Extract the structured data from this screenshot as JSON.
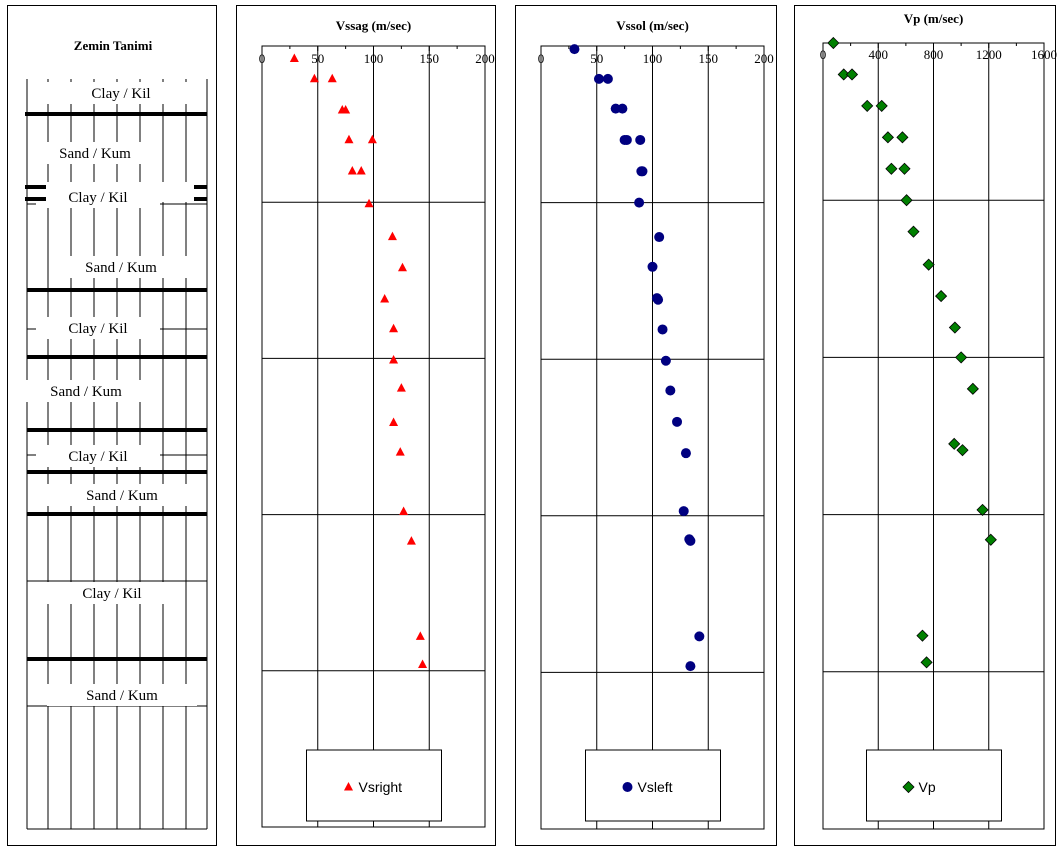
{
  "soil_column": {
    "title": "Zemin Tanimi",
    "layers": [
      {
        "label": "Clay / Kil"
      },
      {
        "label": "Sand / Kum"
      },
      {
        "label": "Clay / Kil"
      },
      {
        "label": "Sand / Kum"
      },
      {
        "label": "Clay / Kil"
      },
      {
        "label": "Sand / Kum"
      },
      {
        "label": "Clay / Kil"
      },
      {
        "label": "Sand / Kum"
      },
      {
        "label": "Clay / Kil"
      },
      {
        "label": "Sand / Kum"
      }
    ]
  },
  "chart_data": [
    {
      "type": "scatter",
      "title": "Vssag (m/sec)",
      "xlim": [
        0,
        200
      ],
      "xticks": [
        "0",
        "50",
        "100",
        "150",
        "200"
      ],
      "grid": true,
      "legend_position": "bottom",
      "series": [
        {
          "name": "Vsright",
          "marker": "triangle",
          "color": "#ff0000",
          "points": [
            {
              "x": 29,
              "depth": 0.8
            },
            {
              "x": 47,
              "depth": 2.1
            },
            {
              "x": 63,
              "depth": 2.1
            },
            {
              "x": 72,
              "depth": 4.1
            },
            {
              "x": 75,
              "depth": 4.1
            },
            {
              "x": 78,
              "depth": 6.0
            },
            {
              "x": 99,
              "depth": 6.0
            },
            {
              "x": 81,
              "depth": 8.0
            },
            {
              "x": 89,
              "depth": 8.0
            },
            {
              "x": 96,
              "depth": 10.1
            },
            {
              "x": 117,
              "depth": 12.2
            },
            {
              "x": 126,
              "depth": 14.2
            },
            {
              "x": 110,
              "depth": 16.2
            },
            {
              "x": 118,
              "depth": 18.1
            },
            {
              "x": 118,
              "depth": 20.1
            },
            {
              "x": 125,
              "depth": 21.9
            },
            {
              "x": 118,
              "depth": 24.1
            },
            {
              "x": 124,
              "depth": 26.0
            },
            {
              "x": 127,
              "depth": 29.8
            },
            {
              "x": 134,
              "depth": 31.7
            },
            {
              "x": 142,
              "depth": 37.8
            },
            {
              "x": 144,
              "depth": 39.6
            }
          ]
        }
      ]
    },
    {
      "type": "scatter",
      "title": "Vssol (m/sec)",
      "xlim": [
        0,
        200
      ],
      "xticks": [
        "0",
        "50",
        "100",
        "150",
        "200"
      ],
      "grid": true,
      "legend_position": "bottom",
      "series": [
        {
          "name": "Vsleft",
          "marker": "circle",
          "color": "#000080",
          "points": [
            {
              "x": 30,
              "depth": 0.2
            },
            {
              "x": 52,
              "depth": 2.1
            },
            {
              "x": 60,
              "depth": 2.1
            },
            {
              "x": 67,
              "depth": 4.0
            },
            {
              "x": 73,
              "depth": 4.0
            },
            {
              "x": 75,
              "depth": 6.0
            },
            {
              "x": 77,
              "depth": 6.0
            },
            {
              "x": 89,
              "depth": 6.0
            },
            {
              "x": 90,
              "depth": 8.0
            },
            {
              "x": 91,
              "depth": 8.0
            },
            {
              "x": 88,
              "depth": 10.0
            },
            {
              "x": 106,
              "depth": 12.2
            },
            {
              "x": 100,
              "depth": 14.1
            },
            {
              "x": 104,
              "depth": 16.1
            },
            {
              "x": 105,
              "depth": 16.2
            },
            {
              "x": 109,
              "depth": 18.1
            },
            {
              "x": 112,
              "depth": 20.1
            },
            {
              "x": 116,
              "depth": 22.0
            },
            {
              "x": 122,
              "depth": 24.0
            },
            {
              "x": 130,
              "depth": 26.0
            },
            {
              "x": 128,
              "depth": 29.7
            },
            {
              "x": 133,
              "depth": 31.5
            },
            {
              "x": 134,
              "depth": 31.6
            },
            {
              "x": 142,
              "depth": 37.7
            },
            {
              "x": 134,
              "depth": 39.6
            }
          ]
        }
      ]
    },
    {
      "type": "scatter",
      "title": "Vp (m/sec)",
      "xlim": [
        0,
        1600
      ],
      "xticks": [
        "0",
        "400",
        "800",
        "1200",
        "1600"
      ],
      "grid": true,
      "legend_position": "bottom",
      "series": [
        {
          "name": "Vp",
          "marker": "diamond",
          "color": "#008000",
          "points": [
            {
              "x": 75,
              "depth": 0.0
            },
            {
              "x": 150,
              "depth": 2.0
            },
            {
              "x": 210,
              "depth": 2.0
            },
            {
              "x": 320,
              "depth": 4.0
            },
            {
              "x": 425,
              "depth": 4.0
            },
            {
              "x": 470,
              "depth": 6.0
            },
            {
              "x": 575,
              "depth": 6.0
            },
            {
              "x": 495,
              "depth": 8.0
            },
            {
              "x": 590,
              "depth": 8.0
            },
            {
              "x": 605,
              "depth": 10.0
            },
            {
              "x": 655,
              "depth": 12.0
            },
            {
              "x": 765,
              "depth": 14.1
            },
            {
              "x": 855,
              "depth": 16.1
            },
            {
              "x": 955,
              "depth": 18.1
            },
            {
              "x": 1000,
              "depth": 20.0
            },
            {
              "x": 1085,
              "depth": 22.0
            },
            {
              "x": 950,
              "depth": 25.5
            },
            {
              "x": 1010,
              "depth": 25.9
            },
            {
              "x": 1155,
              "depth": 29.7
            },
            {
              "x": 1215,
              "depth": 31.6
            },
            {
              "x": 720,
              "depth": 37.7
            },
            {
              "x": 750,
              "depth": 39.4
            }
          ]
        }
      ]
    }
  ]
}
